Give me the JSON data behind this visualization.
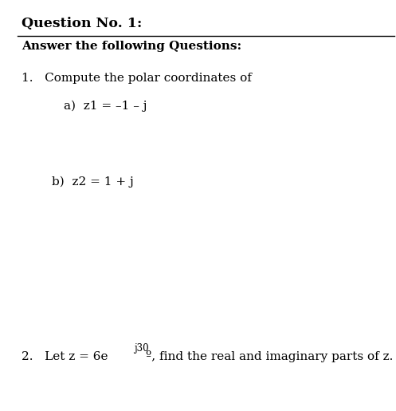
{
  "title": "Question No. 1:",
  "subtitle": "Answer the following Questions:",
  "item1_intro": "1.   Compute the polar coordinates of",
  "item1a": "a)  z1 = –1 – j",
  "item1b": "b)  z2 = 1 + j",
  "item2_pre": "2.   Let z = 6e",
  "item2_exp": "j30",
  "item2_suf": "º, find the real and imaginary parts of z.",
  "bg_color": "#ffffff",
  "text_color": "#000000",
  "fs_title": 12.5,
  "fs_body": 11.0,
  "fs_sub": 8.5
}
